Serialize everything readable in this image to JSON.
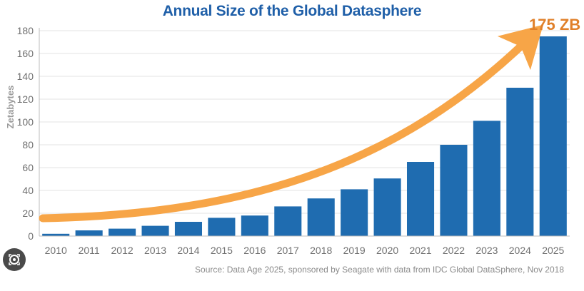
{
  "chart_data": {
    "type": "bar",
    "title": "Annual Size of the Global Datasphere",
    "ylabel": "Zetabytes",
    "xlabel": "",
    "ylim": [
      0,
      180
    ],
    "yticks": [
      0,
      20,
      40,
      60,
      80,
      100,
      120,
      140,
      160,
      180
    ],
    "categories": [
      "2010",
      "2011",
      "2012",
      "2013",
      "2014",
      "2015",
      "2016",
      "2017",
      "2018",
      "2019",
      "2020",
      "2021",
      "2022",
      "2023",
      "2024",
      "2025"
    ],
    "values": [
      2,
      5,
      6.5,
      9,
      12.5,
      16,
      18,
      26,
      33,
      41,
      50.5,
      65,
      80,
      101,
      130,
      175
    ],
    "annotation": "175 ZB",
    "source": "Source: Data Age 2025, sponsored by Seagate with data from IDC Global DataSphere, Nov 2018",
    "grid": true,
    "bar_color": "#1f6cb0",
    "arrow_color": "#f7a547",
    "annotation_color": "#e0802a"
  },
  "overlay": {
    "icon": "image-search-lens-icon"
  }
}
